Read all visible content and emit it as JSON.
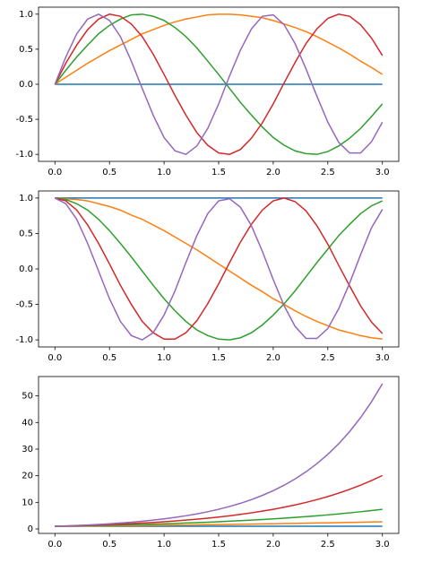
{
  "chart_data": [
    {
      "type": "line",
      "x": [
        0,
        0.1,
        0.2,
        0.3,
        0.4,
        0.5,
        0.6,
        0.7,
        0.8,
        0.9,
        1.0,
        1.1,
        1.2,
        1.3,
        1.4,
        1.5,
        1.6,
        1.7,
        1.8,
        1.9,
        2.0,
        2.1,
        2.2,
        2.3,
        2.4,
        2.5,
        2.6,
        2.7,
        2.8,
        2.9,
        3.0
      ],
      "series": [
        {
          "color": "#1f77b4",
          "values": [
            0,
            0,
            0,
            0,
            0,
            0,
            0,
            0,
            0,
            0,
            0,
            0,
            0,
            0,
            0,
            0,
            0,
            0,
            0,
            0,
            0,
            0,
            0,
            0,
            0,
            0,
            0,
            0,
            0,
            0,
            0
          ]
        },
        {
          "color": "#ff7f0e",
          "values": [
            0,
            0.1,
            0.2,
            0.3,
            0.39,
            0.48,
            0.56,
            0.64,
            0.72,
            0.78,
            0.84,
            0.89,
            0.93,
            0.96,
            0.99,
            1.0,
            1.0,
            0.99,
            0.97,
            0.95,
            0.91,
            0.86,
            0.81,
            0.75,
            0.68,
            0.6,
            0.52,
            0.43,
            0.33,
            0.24,
            0.14
          ]
        },
        {
          "color": "#2ca02c",
          "values": [
            0,
            0.2,
            0.39,
            0.56,
            0.72,
            0.84,
            0.93,
            0.99,
            1.0,
            0.97,
            0.91,
            0.81,
            0.68,
            0.52,
            0.33,
            0.14,
            -0.06,
            -0.26,
            -0.44,
            -0.61,
            -0.76,
            -0.87,
            -0.95,
            -0.99,
            -1.0,
            -0.96,
            -0.88,
            -0.77,
            -0.63,
            -0.46,
            -0.28
          ]
        },
        {
          "color": "#d62728",
          "values": [
            0,
            0.3,
            0.56,
            0.78,
            0.93,
            1.0,
            0.97,
            0.86,
            0.68,
            0.43,
            0.14,
            -0.16,
            -0.44,
            -0.69,
            -0.87,
            -0.98,
            -1.0,
            -0.93,
            -0.77,
            -0.55,
            -0.28,
            0.02,
            0.31,
            0.58,
            0.79,
            0.94,
            1.0,
            0.97,
            0.85,
            0.66,
            0.41
          ]
        },
        {
          "color": "#9467bd",
          "values": [
            0,
            0.39,
            0.72,
            0.93,
            1.0,
            0.91,
            0.68,
            0.33,
            -0.06,
            -0.44,
            -0.76,
            -0.95,
            -1.0,
            -0.88,
            -0.63,
            -0.28,
            0.12,
            0.49,
            0.79,
            0.97,
            0.99,
            0.85,
            0.58,
            0.22,
            -0.17,
            -0.54,
            -0.83,
            -0.98,
            -0.98,
            -0.82,
            -0.54
          ]
        }
      ],
      "xlim": [
        -0.15,
        3.15
      ],
      "xticks": [
        {
          "value": 0,
          "label": "0.0"
        },
        0.5,
        {
          "value": 1,
          "label": "1.0"
        },
        1.5,
        {
          "value": 2,
          "label": "2.0"
        },
        2.5,
        {
          "value": 3,
          "label": "3.0"
        }
      ],
      "ylim": [
        -1.1,
        1.1
      ],
      "yticks": [
        {
          "value": -1,
          "label": "-1.0"
        },
        -0.5,
        {
          "value": 0,
          "label": "0.0"
        },
        0.5,
        {
          "value": 1,
          "label": "1.0"
        }
      ]
    },
    {
      "type": "line",
      "x": [
        0,
        0.1,
        0.2,
        0.3,
        0.4,
        0.5,
        0.6,
        0.7,
        0.8,
        0.9,
        1.0,
        1.1,
        1.2,
        1.3,
        1.4,
        1.5,
        1.6,
        1.7,
        1.8,
        1.9,
        2.0,
        2.1,
        2.2,
        2.3,
        2.4,
        2.5,
        2.6,
        2.7,
        2.8,
        2.9,
        3.0
      ],
      "series": [
        {
          "color": "#1f77b4",
          "values": [
            1,
            1,
            1,
            1,
            1,
            1,
            1,
            1,
            1,
            1,
            1,
            1,
            1,
            1,
            1,
            1,
            1,
            1,
            1,
            1,
            1,
            1,
            1,
            1,
            1,
            1,
            1,
            1,
            1,
            1,
            1
          ]
        },
        {
          "color": "#ff7f0e",
          "values": [
            1.0,
            0.99,
            0.98,
            0.96,
            0.92,
            0.88,
            0.83,
            0.76,
            0.7,
            0.62,
            0.54,
            0.45,
            0.36,
            0.27,
            0.17,
            0.07,
            -0.03,
            -0.13,
            -0.23,
            -0.32,
            -0.42,
            -0.5,
            -0.59,
            -0.67,
            -0.74,
            -0.8,
            -0.86,
            -0.9,
            -0.94,
            -0.97,
            -0.99
          ]
        },
        {
          "color": "#2ca02c",
          "values": [
            1,
            0.98,
            0.92,
            0.83,
            0.7,
            0.54,
            0.36,
            0.17,
            -0.03,
            -0.23,
            -0.42,
            -0.59,
            -0.74,
            -0.86,
            -0.94,
            -0.99,
            -1.0,
            -0.97,
            -0.9,
            -0.79,
            -0.65,
            -0.49,
            -0.31,
            -0.11,
            0.09,
            0.28,
            0.47,
            0.63,
            0.78,
            0.89,
            0.96
          ]
        },
        {
          "color": "#d62728",
          "values": [
            1,
            0.96,
            0.83,
            0.62,
            0.36,
            0.07,
            -0.23,
            -0.5,
            -0.74,
            -0.9,
            -0.99,
            -0.99,
            -0.9,
            -0.73,
            -0.49,
            -0.21,
            0.09,
            0.38,
            0.63,
            0.83,
            0.96,
            1.0,
            0.95,
            0.82,
            0.61,
            0.35,
            0.05,
            -0.24,
            -0.52,
            -0.75,
            -0.91
          ]
        },
        {
          "color": "#9467bd",
          "values": [
            1,
            0.92,
            0.7,
            0.36,
            -0.03,
            -0.42,
            -0.74,
            -0.94,
            -1.0,
            -0.9,
            -0.65,
            -0.31,
            0.09,
            0.47,
            0.78,
            0.96,
            0.99,
            0.87,
            0.61,
            0.25,
            -0.15,
            -0.52,
            -0.81,
            -0.98,
            -0.98,
            -0.84,
            -0.56,
            -0.2,
            0.2,
            0.58,
            0.84
          ]
        }
      ],
      "xlim": [
        -0.15,
        3.15
      ],
      "xticks": [
        {
          "value": 0,
          "label": "0.0"
        },
        0.5,
        {
          "value": 1,
          "label": "1.0"
        },
        1.5,
        {
          "value": 2,
          "label": "2.0"
        },
        2.5,
        {
          "value": 3,
          "label": "3.0"
        }
      ],
      "ylim": [
        -1.1,
        1.1
      ],
      "yticks": [
        {
          "value": -1,
          "label": "-1.0"
        },
        -0.5,
        {
          "value": 0,
          "label": "0.0"
        },
        0.5,
        {
          "value": 1,
          "label": "1.0"
        }
      ]
    },
    {
      "type": "line",
      "x": [
        0,
        0.1,
        0.2,
        0.3,
        0.4,
        0.5,
        0.6,
        0.7,
        0.8,
        0.9,
        1.0,
        1.1,
        1.2,
        1.3,
        1.4,
        1.5,
        1.6,
        1.7,
        1.8,
        1.9,
        2.0,
        2.1,
        2.2,
        2.3,
        2.4,
        2.5,
        2.6,
        2.7,
        2.8,
        2.9,
        3.0
      ],
      "series": [
        {
          "color": "#1f77b4",
          "values": [
            1,
            1,
            1,
            1,
            1,
            1,
            1,
            1,
            1,
            1,
            1,
            1,
            1,
            1,
            1,
            1,
            1,
            1,
            1,
            1,
            1,
            1,
            1,
            1,
            1,
            1,
            1,
            1,
            1,
            1,
            1
          ]
        },
        {
          "color": "#ff7f0e",
          "values": [
            1.0,
            1.03,
            1.07,
            1.11,
            1.14,
            1.18,
            1.22,
            1.26,
            1.31,
            1.35,
            1.4,
            1.44,
            1.49,
            1.54,
            1.6,
            1.65,
            1.71,
            1.76,
            1.82,
            1.88,
            1.95,
            2.01,
            2.08,
            2.15,
            2.23,
            2.3,
            2.38,
            2.46,
            2.54,
            2.63,
            2.72
          ]
        },
        {
          "color": "#2ca02c",
          "values": [
            1.0,
            1.07,
            1.14,
            1.22,
            1.31,
            1.4,
            1.49,
            1.6,
            1.71,
            1.82,
            1.95,
            2.08,
            2.23,
            2.38,
            2.54,
            2.72,
            2.91,
            3.11,
            3.32,
            3.55,
            3.79,
            4.06,
            4.34,
            4.63,
            4.95,
            5.29,
            5.66,
            6.05,
            6.47,
            6.91,
            7.39
          ]
        },
        {
          "color": "#d62728",
          "values": [
            1.0,
            1.11,
            1.22,
            1.35,
            1.49,
            1.65,
            1.82,
            2.01,
            2.23,
            2.46,
            2.72,
            3.0,
            3.32,
            3.67,
            4.06,
            4.48,
            4.95,
            5.47,
            6.05,
            6.69,
            7.39,
            8.17,
            9.03,
            9.97,
            11.02,
            12.18,
            13.46,
            14.88,
            16.44,
            18.17,
            20.09
          ]
        },
        {
          "color": "#9467bd",
          "values": [
            1.0,
            1.14,
            1.31,
            1.49,
            1.7,
            1.95,
            2.23,
            2.54,
            2.91,
            3.32,
            3.79,
            4.34,
            4.95,
            5.66,
            6.47,
            7.39,
            8.44,
            9.64,
            11.02,
            12.6,
            14.39,
            16.44,
            18.79,
            21.47,
            24.53,
            28.03,
            32.03,
            36.6,
            41.82,
            47.79,
            54.6
          ]
        }
      ],
      "xlim": [
        -0.15,
        3.15
      ],
      "xticks": [
        {
          "value": 0,
          "label": "0.0"
        },
        0.5,
        {
          "value": 1,
          "label": "1.0"
        },
        1.5,
        {
          "value": 2,
          "label": "2.0"
        },
        2.5,
        {
          "value": 3,
          "label": "3.0"
        }
      ],
      "ylim": [
        -1.68,
        57.28
      ],
      "yticks": [
        0,
        10,
        20,
        30,
        40,
        50
      ]
    }
  ]
}
